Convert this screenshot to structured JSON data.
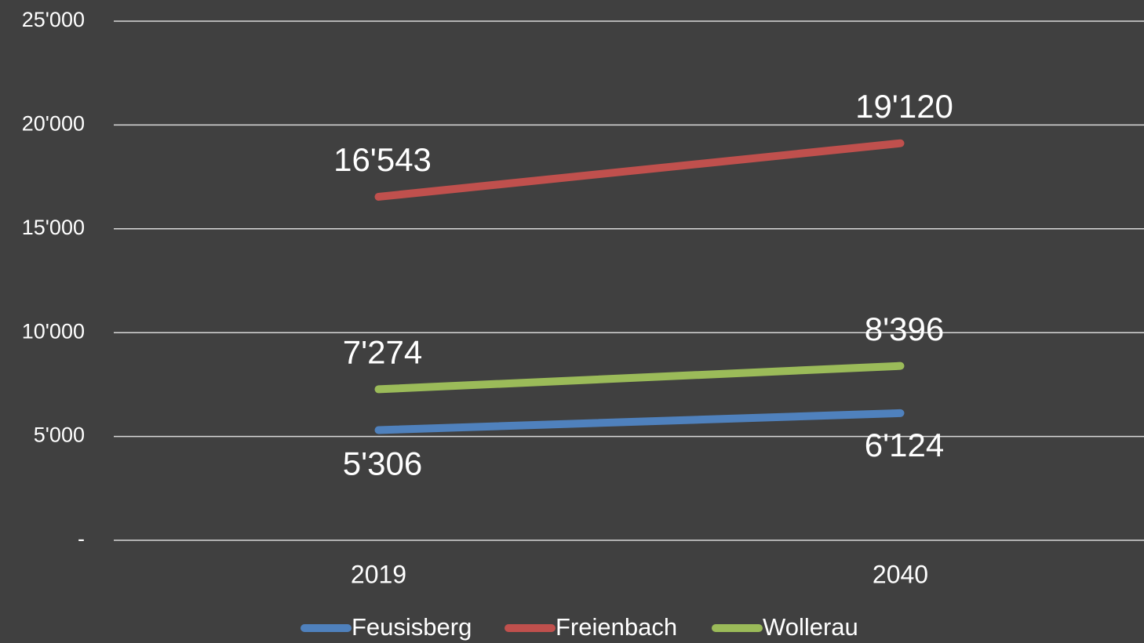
{
  "chart_data": {
    "type": "line",
    "categories": [
      "2019",
      "2040"
    ],
    "series": [
      {
        "name": "Feusisberg",
        "color": "#4f81bd",
        "values": [
          5306,
          6124
        ],
        "value_labels": [
          "5'306",
          "6'124"
        ]
      },
      {
        "name": "Freienbach",
        "color": "#c0504d",
        "values": [
          16543,
          19120
        ],
        "value_labels": [
          "16'543",
          "19'120"
        ]
      },
      {
        "name": "Wollerau",
        "color": "#9bbb59",
        "values": [
          7274,
          8396
        ],
        "value_labels": [
          "7'274",
          "8'396"
        ]
      }
    ],
    "ylim": [
      0,
      25000
    ],
    "yticks": [
      {
        "value": 0,
        "label": "-"
      },
      {
        "value": 5000,
        "label": "5'000"
      },
      {
        "value": 10000,
        "label": "10'000"
      },
      {
        "value": 15000,
        "label": "15'000"
      },
      {
        "value": 20000,
        "label": "20'000"
      },
      {
        "value": 25000,
        "label": "25'000"
      }
    ],
    "grid": true,
    "legend": "bottom"
  }
}
